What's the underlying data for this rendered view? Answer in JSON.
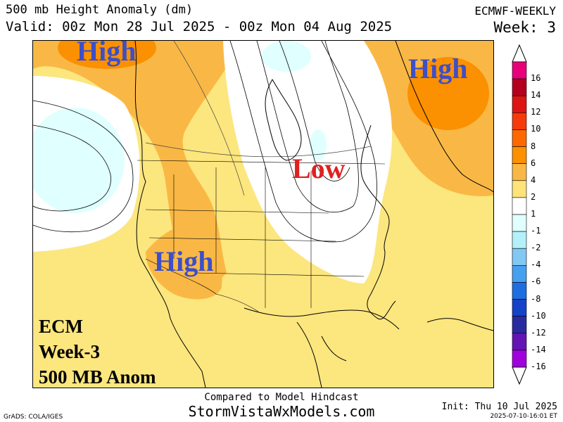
{
  "header": {
    "title": "500 mb Height Anomaly (dm)",
    "valid": "Valid: 00z Mon 28 Jul 2025 - 00z Mon 04 Aug 2025",
    "source": "ECMWF-WEEKLY",
    "week": "Week: 3"
  },
  "map": {
    "labels": [
      {
        "text": "High",
        "kind": "high"
      },
      {
        "text": "High",
        "kind": "high"
      },
      {
        "text": "Low",
        "kind": "low"
      },
      {
        "text": "High",
        "kind": "high"
      }
    ],
    "model_box": [
      "ECM",
      "Week-3",
      "500 MB Anom"
    ],
    "colors": {
      "high_label": "#3d4fc9",
      "low_label": "#e02020"
    }
  },
  "scale": {
    "ticks": [
      "16",
      "14",
      "12",
      "10",
      "8",
      "6",
      "4",
      "2",
      "1",
      "-1",
      "-2",
      "-4",
      "-6",
      "-8",
      "-10",
      "-12",
      "-14",
      "-16"
    ],
    "colors": [
      "#e8007a",
      "#b4001e",
      "#dc1414",
      "#f53b0c",
      "#ff6800",
      "#fb9000",
      "#f9b845",
      "#fde37a",
      "#ffffff",
      "#e0ffff",
      "#b4f0fa",
      "#82c8f5",
      "#46a0f0",
      "#1e6ee1",
      "#1443c8",
      "#2a2aa0",
      "#6414b4",
      "#a000dc"
    ]
  },
  "footer": {
    "compared": "Compared to Model Hindcast",
    "site": "StormVistaWxModels.com",
    "grads": "GrADS: COLA/IGES",
    "init": "Init: Thu 10 Jul 2025",
    "stamp": "2025-07-10-16:01 ET"
  }
}
